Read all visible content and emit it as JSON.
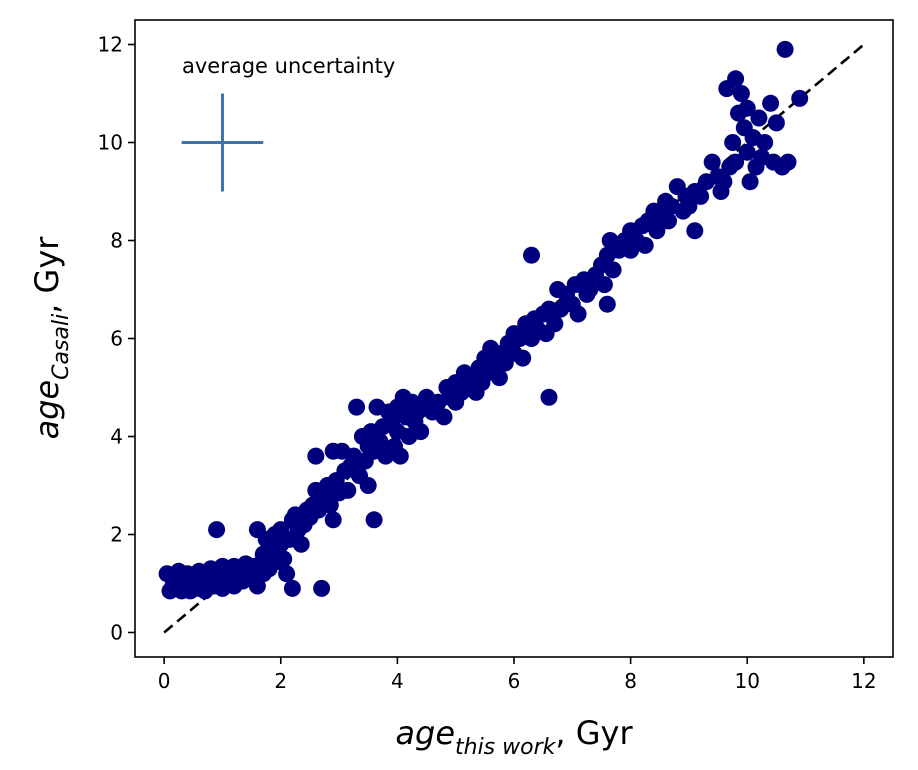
{
  "chart_data": {
    "type": "scatter",
    "title": "",
    "xlabel": {
      "main": "age",
      "sub": "this work",
      "unit": ", Gyr"
    },
    "ylabel": {
      "main": "age",
      "sub": "Casali",
      "unit": ", Gyr"
    },
    "xlim": [
      -0.5,
      12.5
    ],
    "ylim": [
      -0.5,
      12.5
    ],
    "xticks": [
      0,
      2,
      4,
      6,
      8,
      10,
      12
    ],
    "yticks": [
      0,
      2,
      4,
      6,
      8,
      10,
      12
    ],
    "grid": false,
    "point_color": "#00007f",
    "reference_line": {
      "style": "dashed",
      "color": "#000000",
      "from": [
        0,
        0
      ],
      "to": [
        12,
        12
      ]
    },
    "uncertainty_marker": {
      "label": "average uncertainty",
      "color": "#3c73ad",
      "center": [
        1.0,
        10.0
      ],
      "x_halfwidth": 0.7,
      "y_halfwidth": 1.0
    },
    "points": [
      [
        0.05,
        1.2
      ],
      [
        0.1,
        0.85
      ],
      [
        0.15,
        0.95
      ],
      [
        0.2,
        1.1
      ],
      [
        0.25,
        1.25
      ],
      [
        0.3,
        0.85
      ],
      [
        0.3,
        1.15
      ],
      [
        0.35,
        0.95
      ],
      [
        0.4,
        1.05
      ],
      [
        0.4,
        1.2
      ],
      [
        0.45,
        0.85
      ],
      [
        0.5,
        0.95
      ],
      [
        0.5,
        1.15
      ],
      [
        0.55,
        1.05
      ],
      [
        0.6,
        1.25
      ],
      [
        0.6,
        0.9
      ],
      [
        0.65,
        1.15
      ],
      [
        0.7,
        0.85
      ],
      [
        0.7,
        1.1
      ],
      [
        0.75,
        1.0
      ],
      [
        0.8,
        1.3
      ],
      [
        0.85,
        0.95
      ],
      [
        0.9,
        1.2
      ],
      [
        0.9,
        2.1
      ],
      [
        0.95,
        1.05
      ],
      [
        1.0,
        1.35
      ],
      [
        1.0,
        0.9
      ],
      [
        1.05,
        1.25
      ],
      [
        1.1,
        1.1
      ],
      [
        1.15,
        1.2
      ],
      [
        1.2,
        1.35
      ],
      [
        1.2,
        0.95
      ],
      [
        1.3,
        1.2
      ],
      [
        1.35,
        1.05
      ],
      [
        1.4,
        1.4
      ],
      [
        1.45,
        1.25
      ],
      [
        1.5,
        1.35
      ],
      [
        1.55,
        1.1
      ],
      [
        1.6,
        2.1
      ],
      [
        1.6,
        0.95
      ],
      [
        1.65,
        1.4
      ],
      [
        1.7,
        1.2
      ],
      [
        1.7,
        1.6
      ],
      [
        1.75,
        1.9
      ],
      [
        1.8,
        1.3
      ],
      [
        1.85,
        1.7
      ],
      [
        1.9,
        2.0
      ],
      [
        1.95,
        1.45
      ],
      [
        2.0,
        1.8
      ],
      [
        2.0,
        2.1
      ],
      [
        2.05,
        1.5
      ],
      [
        2.1,
        1.2
      ],
      [
        2.15,
        1.9
      ],
      [
        2.2,
        0.9
      ],
      [
        2.2,
        2.3
      ],
      [
        2.25,
        2.4
      ],
      [
        2.3,
        2.1
      ],
      [
        2.35,
        1.8
      ],
      [
        2.4,
        2.2
      ],
      [
        2.45,
        2.5
      ],
      [
        2.5,
        2.35
      ],
      [
        2.55,
        2.6
      ],
      [
        2.6,
        3.6
      ],
      [
        2.6,
        2.9
      ],
      [
        2.65,
        2.5
      ],
      [
        2.7,
        0.9
      ],
      [
        2.75,
        2.8
      ],
      [
        2.8,
        3.0
      ],
      [
        2.85,
        2.6
      ],
      [
        2.9,
        2.3
      ],
      [
        2.9,
        3.7
      ],
      [
        2.95,
        3.1
      ],
      [
        3.0,
        2.85
      ],
      [
        3.05,
        3.7
      ],
      [
        3.1,
        3.3
      ],
      [
        3.15,
        2.9
      ],
      [
        3.2,
        3.4
      ],
      [
        3.25,
        3.6
      ],
      [
        3.3,
        4.6
      ],
      [
        3.35,
        3.2
      ],
      [
        3.4,
        4.0
      ],
      [
        3.45,
        3.5
      ],
      [
        3.5,
        3.8
      ],
      [
        3.5,
        3.0
      ],
      [
        3.55,
        4.1
      ],
      [
        3.6,
        2.3
      ],
      [
        3.6,
        3.7
      ],
      [
        3.65,
        4.6
      ],
      [
        3.7,
        3.9
      ],
      [
        3.75,
        4.2
      ],
      [
        3.8,
        3.6
      ],
      [
        3.85,
        4.5
      ],
      [
        3.9,
        4.3
      ],
      [
        3.95,
        3.8
      ],
      [
        4.0,
        4.6
      ],
      [
        4.0,
        4.1
      ],
      [
        4.05,
        3.6
      ],
      [
        4.1,
        4.8
      ],
      [
        4.15,
        4.4
      ],
      [
        4.2,
        4.0
      ],
      [
        4.25,
        4.7
      ],
      [
        4.3,
        4.3
      ],
      [
        4.35,
        4.5
      ],
      [
        4.4,
        4.1
      ],
      [
        4.45,
        4.6
      ],
      [
        4.5,
        4.8
      ],
      [
        4.6,
        4.5
      ],
      [
        4.7,
        4.7
      ],
      [
        4.8,
        4.4
      ],
      [
        4.85,
        5.0
      ],
      [
        4.9,
        4.8
      ],
      [
        5.0,
        5.1
      ],
      [
        5.0,
        4.7
      ],
      [
        5.1,
        4.9
      ],
      [
        5.15,
        5.3
      ],
      [
        5.2,
        5.0
      ],
      [
        5.3,
        5.2
      ],
      [
        5.35,
        4.9
      ],
      [
        5.4,
        5.4
      ],
      [
        5.45,
        5.1
      ],
      [
        5.5,
        5.6
      ],
      [
        5.55,
        5.3
      ],
      [
        5.6,
        5.8
      ],
      [
        5.7,
        5.5
      ],
      [
        5.75,
        5.2
      ],
      [
        5.8,
        5.7
      ],
      [
        5.85,
        5.5
      ],
      [
        5.9,
        5.9
      ],
      [
        6.0,
        6.1
      ],
      [
        6.0,
        5.7
      ],
      [
        6.1,
        6.0
      ],
      [
        6.15,
        5.6
      ],
      [
        6.2,
        6.3
      ],
      [
        6.3,
        7.7
      ],
      [
        6.3,
        6.0
      ],
      [
        6.35,
        6.4
      ],
      [
        6.4,
        6.2
      ],
      [
        6.5,
        6.5
      ],
      [
        6.55,
        6.1
      ],
      [
        6.6,
        4.8
      ],
      [
        6.6,
        6.6
      ],
      [
        6.7,
        6.3
      ],
      [
        6.75,
        7.0
      ],
      [
        6.8,
        6.6
      ],
      [
        6.9,
        6.9
      ],
      [
        7.0,
        6.7
      ],
      [
        7.05,
        7.1
      ],
      [
        7.1,
        6.5
      ],
      [
        7.2,
        7.2
      ],
      [
        7.25,
        6.9
      ],
      [
        7.3,
        7.0
      ],
      [
        7.4,
        7.3
      ],
      [
        7.5,
        7.5
      ],
      [
        7.55,
        7.1
      ],
      [
        7.6,
        6.7
      ],
      [
        7.6,
        7.7
      ],
      [
        7.65,
        8.0
      ],
      [
        7.7,
        7.4
      ],
      [
        7.8,
        7.8
      ],
      [
        7.9,
        8.0
      ],
      [
        8.0,
        8.2
      ],
      [
        8.0,
        7.8
      ],
      [
        8.1,
        8.0
      ],
      [
        8.2,
        8.3
      ],
      [
        8.25,
        7.9
      ],
      [
        8.3,
        8.4
      ],
      [
        8.4,
        8.6
      ],
      [
        8.45,
        8.2
      ],
      [
        8.5,
        8.5
      ],
      [
        8.6,
        8.8
      ],
      [
        8.65,
        8.4
      ],
      [
        8.7,
        8.7
      ],
      [
        8.8,
        9.1
      ],
      [
        8.9,
        8.6
      ],
      [
        8.95,
        8.9
      ],
      [
        9.0,
        8.7
      ],
      [
        9.1,
        8.2
      ],
      [
        9.1,
        9.0
      ],
      [
        9.2,
        8.9
      ],
      [
        9.3,
        9.2
      ],
      [
        9.4,
        9.6
      ],
      [
        9.5,
        9.3
      ],
      [
        9.55,
        9.0
      ],
      [
        9.6,
        9.2
      ],
      [
        9.65,
        11.1
      ],
      [
        9.7,
        9.5
      ],
      [
        9.75,
        10.0
      ],
      [
        9.8,
        11.3
      ],
      [
        9.8,
        9.6
      ],
      [
        9.85,
        10.6
      ],
      [
        9.9,
        11.0
      ],
      [
        9.95,
        10.3
      ],
      [
        10.0,
        9.8
      ],
      [
        10.0,
        10.7
      ],
      [
        10.05,
        9.2
      ],
      [
        10.1,
        10.1
      ],
      [
        10.15,
        9.5
      ],
      [
        10.2,
        10.5
      ],
      [
        10.25,
        9.7
      ],
      [
        10.3,
        10.0
      ],
      [
        10.4,
        10.8
      ],
      [
        10.45,
        9.6
      ],
      [
        10.5,
        10.4
      ],
      [
        10.6,
        9.5
      ],
      [
        10.65,
        11.9
      ],
      [
        10.7,
        9.6
      ],
      [
        10.9,
        10.9
      ]
    ]
  }
}
